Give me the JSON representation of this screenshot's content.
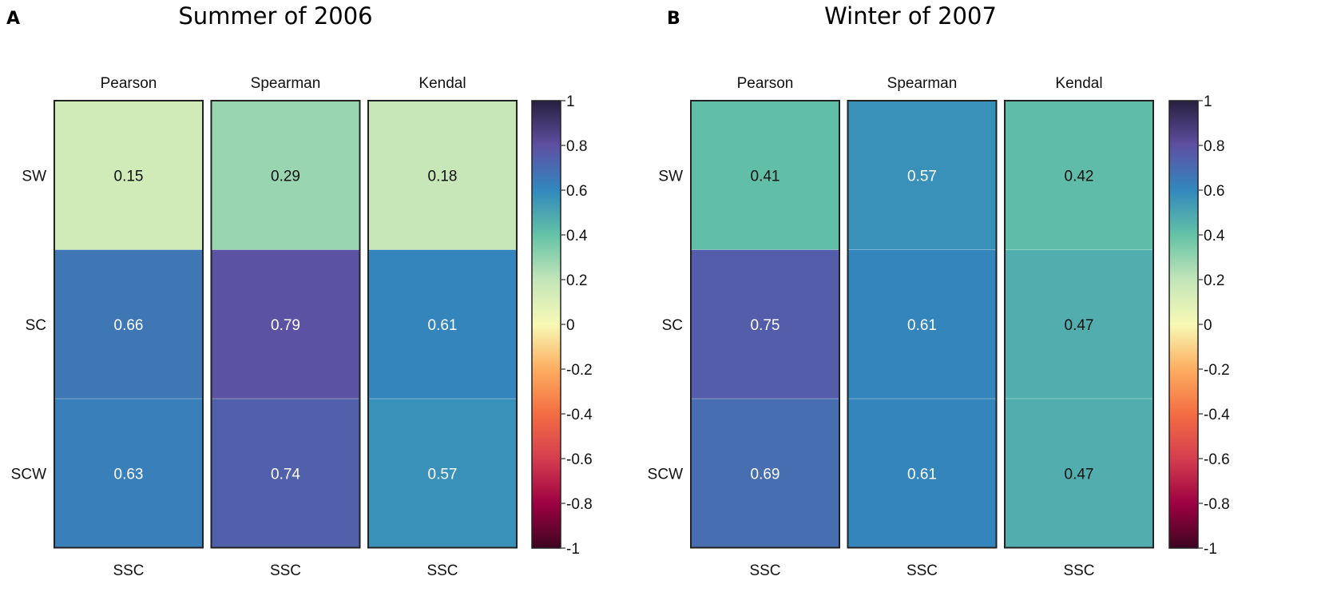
{
  "chart_data": [
    {
      "type": "heatmap",
      "panel_label": "A",
      "title": "Summer of 2006",
      "columns": [
        "Pearson",
        "Spearman",
        "Kendal"
      ],
      "rows": [
        "SW",
        "SC",
        "SCW"
      ],
      "x_bottom_labels": [
        "SSC",
        "SSC",
        "SSC"
      ],
      "values": [
        [
          0.15,
          0.29,
          0.18
        ],
        [
          0.66,
          0.79,
          0.61
        ],
        [
          0.63,
          0.74,
          0.57
        ]
      ],
      "value_labels": [
        [
          "0.15",
          "0.29",
          "0.18"
        ],
        [
          "0.66",
          "0.79",
          "0.61"
        ],
        [
          "0.63",
          "0.74",
          "0.57"
        ]
      ],
      "colorbar": {
        "range": [
          -1,
          1
        ],
        "ticks": [
          "1",
          "0.8",
          "0.6",
          "0.4",
          "0.2",
          "0",
          "-0.2",
          "-0.4",
          "-0.6",
          "-0.8",
          "-1"
        ]
      }
    },
    {
      "type": "heatmap",
      "panel_label": "B",
      "title": "Winter of 2007",
      "columns": [
        "Pearson",
        "Spearman",
        "Kendal"
      ],
      "rows": [
        "SW",
        "SC",
        "SCW"
      ],
      "x_bottom_labels": [
        "SSC",
        "SSC",
        "SSC"
      ],
      "values": [
        [
          0.41,
          0.57,
          0.42
        ],
        [
          0.75,
          0.61,
          0.47
        ],
        [
          0.69,
          0.61,
          0.47
        ]
      ],
      "value_labels": [
        [
          "0.41",
          "0.57",
          "0.42"
        ],
        [
          "0.75",
          "0.61",
          "0.47"
        ],
        [
          "0.69",
          "0.61",
          "0.47"
        ]
      ],
      "colorbar": {
        "range": [
          -1,
          1
        ],
        "ticks": [
          "1",
          "0.8",
          "0.6",
          "0.4",
          "0.2",
          "0",
          "-0.2",
          "-0.4",
          "-0.6",
          "-0.8",
          "-1"
        ]
      }
    }
  ],
  "colormap": {
    "name": "Spectral",
    "stops": [
      {
        "v": -1,
        "c": "#3e0520"
      },
      {
        "v": -0.8,
        "c": "#9e0142"
      },
      {
        "v": -0.6,
        "c": "#d53e4f"
      },
      {
        "v": -0.4,
        "c": "#f46d43"
      },
      {
        "v": -0.2,
        "c": "#fdae61"
      },
      {
        "v": 0,
        "c": "#f7f9b5"
      },
      {
        "v": 0.2,
        "c": "#c3e5b9"
      },
      {
        "v": 0.4,
        "c": "#63c2a6"
      },
      {
        "v": 0.6,
        "c": "#3288bd"
      },
      {
        "v": 0.8,
        "c": "#5e4fa2"
      },
      {
        "v": 1,
        "c": "#26203f"
      }
    ]
  }
}
